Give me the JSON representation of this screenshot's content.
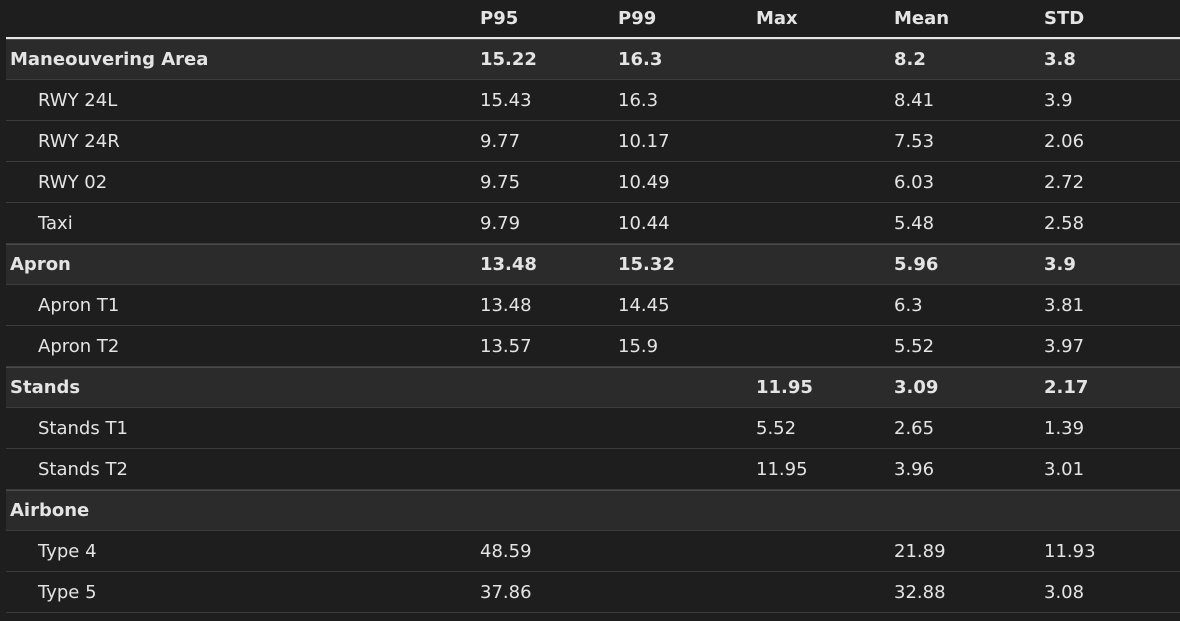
{
  "header": {
    "label": "",
    "p95": "P95",
    "p99": "P99",
    "max": "Max",
    "mean": "Mean",
    "std": "STD"
  },
  "rows": [
    {
      "type": "group",
      "label": "Maneouvering Area",
      "p95": "15.22",
      "p99": "16.3",
      "max": "",
      "mean": "8.2",
      "std": "3.8"
    },
    {
      "type": "sub",
      "label": "RWY 24L",
      "p95": "15.43",
      "p99": "16.3",
      "max": "",
      "mean": "8.41",
      "std": "3.9"
    },
    {
      "type": "sub",
      "label": "RWY 24R",
      "p95": "9.77",
      "p99": "10.17",
      "max": "",
      "mean": "7.53",
      "std": "2.06"
    },
    {
      "type": "sub",
      "label": "RWY 02",
      "p95": "9.75",
      "p99": "10.49",
      "max": "",
      "mean": "6.03",
      "std": "2.72"
    },
    {
      "type": "sub",
      "label": "Taxi",
      "p95": "9.79",
      "p99": "10.44",
      "max": "",
      "mean": "5.48",
      "std": "2.58"
    },
    {
      "type": "group",
      "label": "Apron",
      "p95": "13.48",
      "p99": "15.32",
      "max": "",
      "mean": "5.96",
      "std": "3.9"
    },
    {
      "type": "sub",
      "label": "Apron T1",
      "p95": "13.48",
      "p99": "14.45",
      "max": "",
      "mean": "6.3",
      "std": "3.81"
    },
    {
      "type": "sub",
      "label": "Apron T2",
      "p95": "13.57",
      "p99": "15.9",
      "max": "",
      "mean": "5.52",
      "std": "3.97"
    },
    {
      "type": "group",
      "label": "Stands",
      "p95": "",
      "p99": "",
      "max": "11.95",
      "mean": "3.09",
      "std": "2.17"
    },
    {
      "type": "sub",
      "label": "Stands T1",
      "p95": "",
      "p99": "",
      "max": "5.52",
      "mean": "2.65",
      "std": "1.39"
    },
    {
      "type": "sub",
      "label": "Stands T2",
      "p95": "",
      "p99": "",
      "max": "11.95",
      "mean": "3.96",
      "std": "3.01"
    },
    {
      "type": "group",
      "label": "Airbone",
      "p95": "",
      "p99": "",
      "max": "",
      "mean": "",
      "std": ""
    },
    {
      "type": "sub",
      "label": "Type 4",
      "p95": "48.59",
      "p99": "",
      "max": "",
      "mean": "21.89",
      "std": "11.93"
    },
    {
      "type": "sub",
      "label": "Type 5",
      "p95": "37.86",
      "p99": "",
      "max": "",
      "mean": "32.88",
      "std": "3.08"
    }
  ]
}
